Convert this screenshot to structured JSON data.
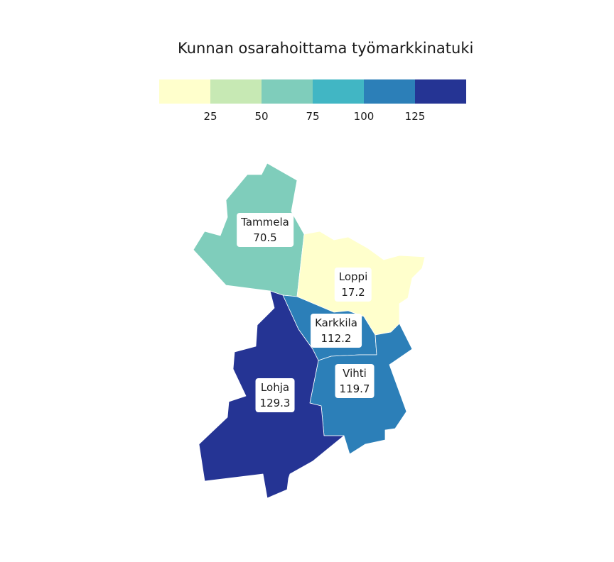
{
  "title": "Kunnan osarahoittama työmarkkinatuki",
  "legend": {
    "colors": [
      "#ffffcc",
      "#c7e9b4",
      "#7fcdbb",
      "#41b6c4",
      "#2c7fb8",
      "#253494"
    ],
    "ticks": [
      "25",
      "50",
      "75",
      "100",
      "125"
    ]
  },
  "regions": [
    {
      "name": "Tammela",
      "value": "70.5",
      "color": "#7fcdbb"
    },
    {
      "name": "Loppi",
      "value": "17.2",
      "color": "#ffffcc"
    },
    {
      "name": "Karkkila",
      "value": "112.2",
      "color": "#2c7fb8"
    },
    {
      "name": "Vihti",
      "value": "119.7",
      "color": "#2c7fb8"
    },
    {
      "name": "Lohja",
      "value": "129.3",
      "color": "#253494"
    }
  ]
}
